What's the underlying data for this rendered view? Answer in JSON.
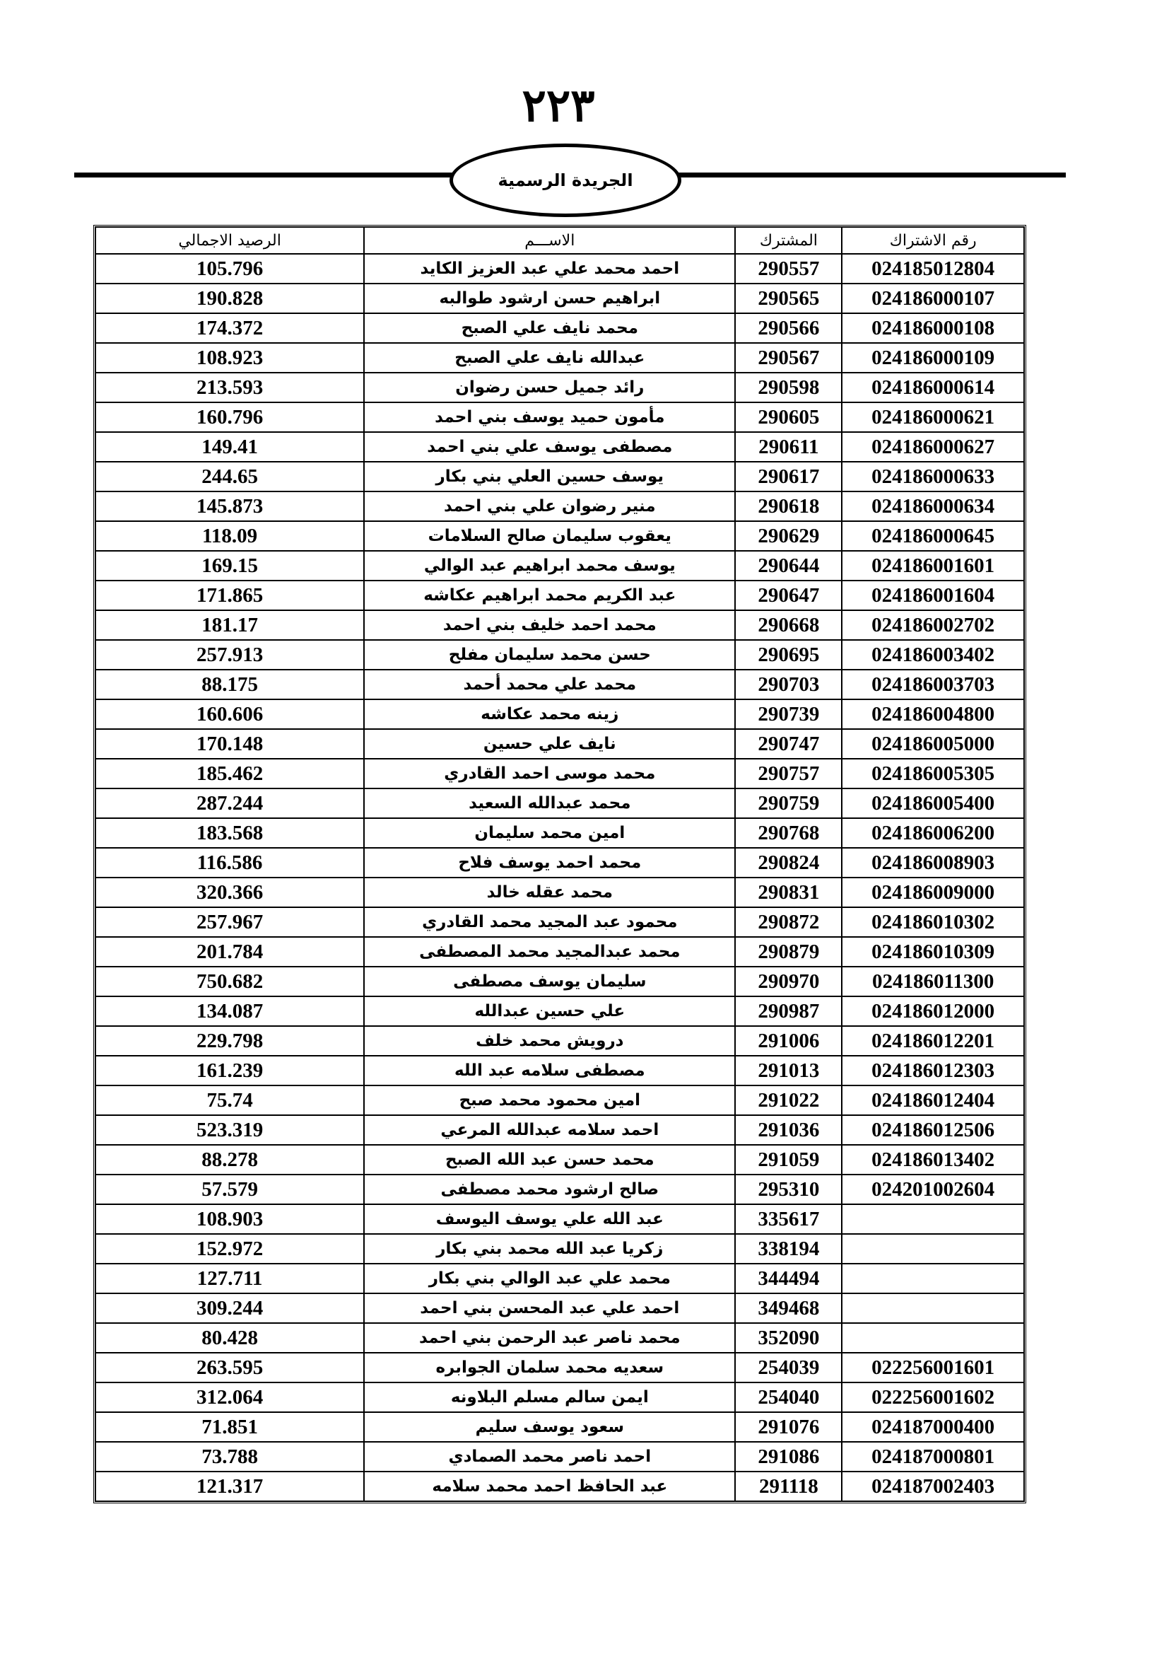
{
  "header": {
    "page_number": "٢٢٣",
    "publication": "الجريدة الرسمية"
  },
  "table": {
    "columns": [
      "الرصيد الاجمالي",
      "الاســـم",
      "المشترك",
      "رقم الاشتراك"
    ],
    "rows": [
      [
        "105.796",
        "احمد محمد علي عبد العزيز الكايد",
        "290557",
        "024185012804"
      ],
      [
        "190.828",
        "ابراهيم حسن ارشود طوالبه",
        "290565",
        "024186000107"
      ],
      [
        "174.372",
        "محمد نايف علي الصبح",
        "290566",
        "024186000108"
      ],
      [
        "108.923",
        "عبدالله نايف علي الصبح",
        "290567",
        "024186000109"
      ],
      [
        "213.593",
        "رائد جميل حسن رضوان",
        "290598",
        "024186000614"
      ],
      [
        "160.796",
        "مأمون حميد يوسف بني احمد",
        "290605",
        "024186000621"
      ],
      [
        "149.41",
        "مصطفى يوسف علي بني احمد",
        "290611",
        "024186000627"
      ],
      [
        "244.65",
        "يوسف حسين العلي بني بكار",
        "290617",
        "024186000633"
      ],
      [
        "145.873",
        "منير رضوان علي بني احمد",
        "290618",
        "024186000634"
      ],
      [
        "118.09",
        "يعقوب سليمان صالح السلامات",
        "290629",
        "024186000645"
      ],
      [
        "169.15",
        "يوسف محمد ابراهيم عبد الوالي",
        "290644",
        "024186001601"
      ],
      [
        "171.865",
        "عبد الكريم محمد ابراهيم عكاشه",
        "290647",
        "024186001604"
      ],
      [
        "181.17",
        "محمد احمد خليف بني احمد",
        "290668",
        "024186002702"
      ],
      [
        "257.913",
        "حسن محمد سليمان مفلح",
        "290695",
        "024186003402"
      ],
      [
        "88.175",
        "محمد علي محمد أحمد",
        "290703",
        "024186003703"
      ],
      [
        "160.606",
        "زينه محمد عكاشه",
        "290739",
        "024186004800"
      ],
      [
        "170.148",
        "نايف علي حسين",
        "290747",
        "024186005000"
      ],
      [
        "185.462",
        "محمد موسى احمد القادري",
        "290757",
        "024186005305"
      ],
      [
        "287.244",
        "محمد عبدالله السعيد",
        "290759",
        "024186005400"
      ],
      [
        "183.568",
        "امين محمد سليمان",
        "290768",
        "024186006200"
      ],
      [
        "116.586",
        "محمد احمد يوسف فلاح",
        "290824",
        "024186008903"
      ],
      [
        "320.366",
        "محمد عقله خالد",
        "290831",
        "024186009000"
      ],
      [
        "257.967",
        "محمود عبد المجيد محمد القادري",
        "290872",
        "024186010302"
      ],
      [
        "201.784",
        "محمد عبدالمجيد محمد المصطفى",
        "290879",
        "024186010309"
      ],
      [
        "750.682",
        "سليمان يوسف مصطفى",
        "290970",
        "024186011300"
      ],
      [
        "134.087",
        "علي حسين عبدالله",
        "290987",
        "024186012000"
      ],
      [
        "229.798",
        "درويش محمد خلف",
        "291006",
        "024186012201"
      ],
      [
        "161.239",
        "مصطفى سلامه عبد الله",
        "291013",
        "024186012303"
      ],
      [
        "75.74",
        "امين محمود محمد صبح",
        "291022",
        "024186012404"
      ],
      [
        "523.319",
        "احمد سلامه عبدالله المرعي",
        "291036",
        "024186012506"
      ],
      [
        "88.278",
        "محمد حسن عبد الله الصبح",
        "291059",
        "024186013402"
      ],
      [
        "57.579",
        "صالح ارشود محمد مصطفى",
        "295310",
        "024201002604"
      ],
      [
        "108.903",
        "عبد الله علي يوسف اليوسف",
        "335617",
        ""
      ],
      [
        "152.972",
        "زكريا عبد الله محمد بني بكار",
        "338194",
        ""
      ],
      [
        "127.711",
        "محمد علي عبد الوالي بني بكار",
        "344494",
        ""
      ],
      [
        "309.244",
        "احمد علي عبد المحسن بني احمد",
        "349468",
        ""
      ],
      [
        "80.428",
        "محمد ناصر عبد الرحمن بني احمد",
        "352090",
        ""
      ],
      [
        "263.595",
        "سعديه محمد سلمان الجوابره",
        "254039",
        "022256001601"
      ],
      [
        "312.064",
        "ايمن سالم مسلم البلاونه",
        "254040",
        "022256001602"
      ],
      [
        "71.851",
        "سعود يوسف سليم",
        "291076",
        "024187000400"
      ],
      [
        "73.788",
        "احمد ناصر محمد الصمادي",
        "291086",
        "024187000801"
      ],
      [
        "121.317",
        "عبد الحافظ احمد محمد سلامه",
        "291118",
        "024187002403"
      ]
    ]
  }
}
